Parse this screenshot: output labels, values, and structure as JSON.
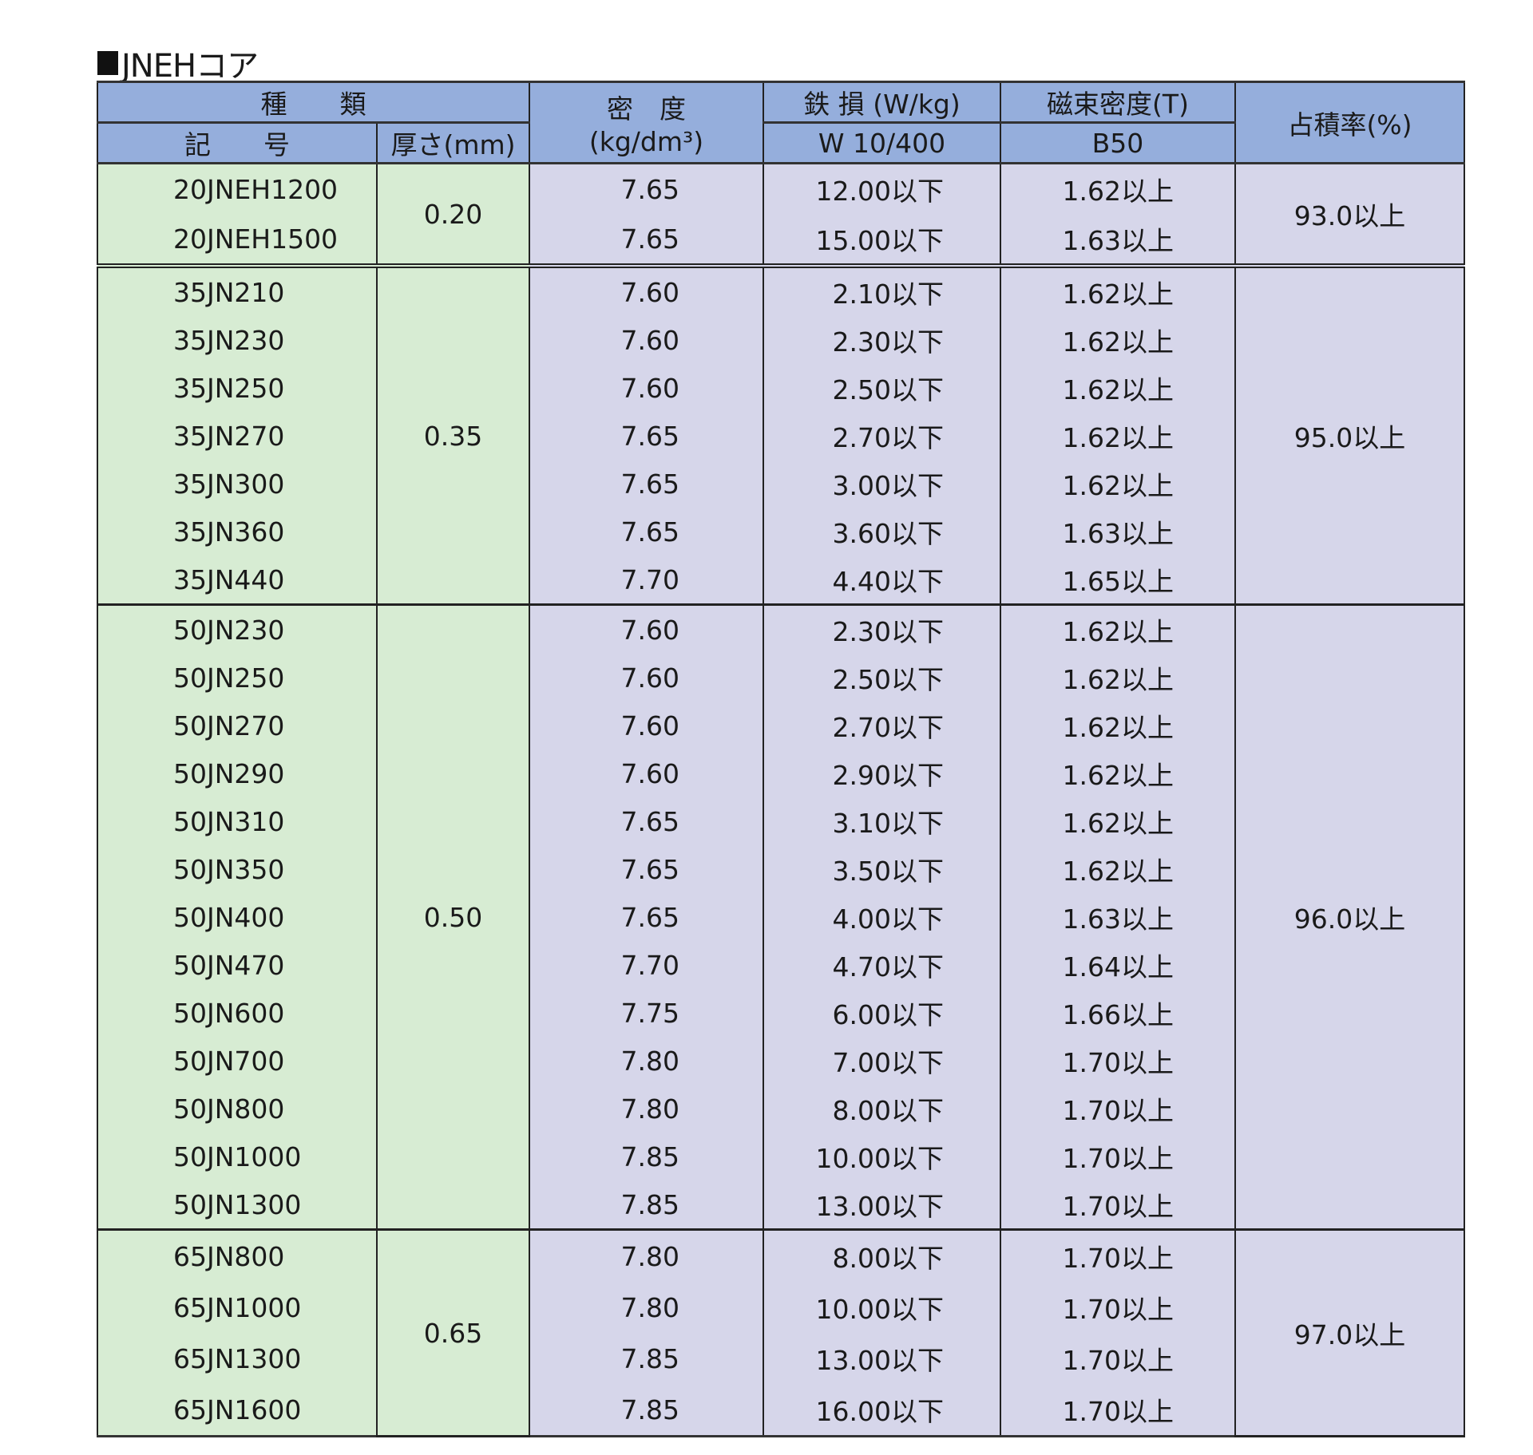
{
  "title": "JNEHコア",
  "header": {
    "kind": "種　　類",
    "code": "記　　号",
    "thickness": "厚さ(mm)",
    "density": "密　度",
    "density_unit": "(kg/dm³)",
    "iron_loss": "鉄 損 (W/kg)",
    "iron_loss_sub": "W 10/400",
    "flux": "磁束密度(T)",
    "flux_sub": "B50",
    "fill": "占積率(%)"
  },
  "colors": {
    "header": "#95aedc",
    "code_bg": "#d7ecd3",
    "value_bg": "#d6d6ea"
  },
  "groups": [
    {
      "thickness": "0.20",
      "fill": "93.0以上",
      "rows": [
        [
          "20JNEH1200",
          "7.65",
          "12.00以下",
          "1.62以上"
        ],
        [
          "20JNEH1500",
          "7.65",
          "15.00以下",
          "1.63以上"
        ]
      ]
    },
    {
      "thickness": "0.35",
      "fill": "95.0以上",
      "rows": [
        [
          "35JN210",
          "7.60",
          "2.10以下",
          "1.62以上"
        ],
        [
          "35JN230",
          "7.60",
          "2.30以下",
          "1.62以上"
        ],
        [
          "35JN250",
          "7.60",
          "2.50以下",
          "1.62以上"
        ],
        [
          "35JN270",
          "7.65",
          "2.70以下",
          "1.62以上"
        ],
        [
          "35JN300",
          "7.65",
          "3.00以下",
          "1.62以上"
        ],
        [
          "35JN360",
          "7.65",
          "3.60以下",
          "1.63以上"
        ],
        [
          "35JN440",
          "7.70",
          "4.40以下",
          "1.65以上"
        ]
      ]
    },
    {
      "thickness": "0.50",
      "fill": "96.0以上",
      "rows": [
        [
          "50JN230",
          "7.60",
          "2.30以下",
          "1.62以上"
        ],
        [
          "50JN250",
          "7.60",
          "2.50以下",
          "1.62以上"
        ],
        [
          "50JN270",
          "7.60",
          "2.70以下",
          "1.62以上"
        ],
        [
          "50JN290",
          "7.60",
          "2.90以下",
          "1.62以上"
        ],
        [
          "50JN310",
          "7.65",
          "3.10以下",
          "1.62以上"
        ],
        [
          "50JN350",
          "7.65",
          "3.50以下",
          "1.62以上"
        ],
        [
          "50JN400",
          "7.65",
          "4.00以下",
          "1.63以上"
        ],
        [
          "50JN470",
          "7.70",
          "4.70以下",
          "1.64以上"
        ],
        [
          "50JN600",
          "7.75",
          "6.00以下",
          "1.66以上"
        ],
        [
          "50JN700",
          "7.80",
          "7.00以下",
          "1.70以上"
        ],
        [
          "50JN800",
          "7.80",
          "8.00以下",
          "1.70以上"
        ],
        [
          "50JN1000",
          "7.85",
          "10.00以下",
          "1.70以上"
        ],
        [
          "50JN1300",
          "7.85",
          "13.00以下",
          "1.70以上"
        ]
      ]
    },
    {
      "thickness": "0.65",
      "fill": "97.0以上",
      "rows": [
        [
          "65JN800",
          "7.80",
          "8.00以下",
          "1.70以上"
        ],
        [
          "65JN1000",
          "7.80",
          "10.00以下",
          "1.70以上"
        ],
        [
          "65JN1300",
          "7.85",
          "13.00以下",
          "1.70以上"
        ],
        [
          "65JN1600",
          "7.85",
          "16.00以下",
          "1.70以上"
        ]
      ]
    }
  ]
}
